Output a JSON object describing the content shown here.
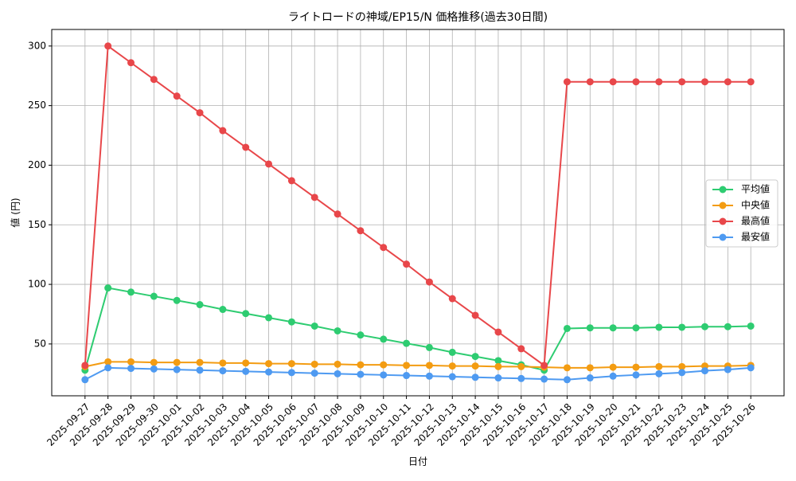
{
  "chart_data": {
    "type": "line",
    "title": "ライトロードの神域/EP15/N 価格推移(過去30日間)",
    "x_label": "日付",
    "y_label": "値 (円)",
    "categories": [
      "2025-09-27",
      "2025-09-28",
      "2025-09-29",
      "2025-09-30",
      "2025-10-01",
      "2025-10-02",
      "2025-10-03",
      "2025-10-04",
      "2025-10-05",
      "2025-10-06",
      "2025-10-07",
      "2025-10-08",
      "2025-10-09",
      "2025-10-10",
      "2025-10-11",
      "2025-10-12",
      "2025-10-13",
      "2025-10-14",
      "2025-10-15",
      "2025-10-16",
      "2025-10-17",
      "2025-10-18",
      "2025-10-19",
      "2025-10-20",
      "2025-10-21",
      "2025-10-22",
      "2025-10-23",
      "2025-10-24",
      "2025-10-25",
      "2025-10-26"
    ],
    "series": [
      {
        "name": "平均値",
        "color": "#2ecc71",
        "values": [
          28,
          97,
          93.5,
          90,
          86.5,
          83,
          79,
          75.5,
          72,
          68.5,
          65,
          61,
          57.5,
          54,
          50.5,
          47,
          43,
          39.5,
          36,
          32.5,
          28,
          63,
          63.5,
          63.5,
          63.5,
          64,
          64,
          64.5,
          64.5,
          65
        ]
      },
      {
        "name": "中央値",
        "color": "#f39c12",
        "values": [
          31,
          35,
          35,
          34.5,
          34.5,
          34.5,
          34,
          34,
          33.5,
          33.5,
          33,
          33,
          32.5,
          32.5,
          32,
          32,
          31.5,
          31.5,
          31,
          31,
          30.5,
          30,
          30,
          30.5,
          30.5,
          31,
          31,
          31.5,
          31.5,
          32
        ]
      },
      {
        "name": "最高値",
        "color": "#e8474a",
        "values": [
          32,
          300,
          286,
          272,
          258,
          244,
          229,
          215,
          201,
          187,
          173,
          159,
          145,
          131,
          117,
          102,
          88,
          74,
          60,
          46,
          32,
          270,
          270,
          270,
          270,
          270,
          270,
          270,
          270,
          270
        ]
      },
      {
        "name": "最安値",
        "color": "#4e9af1",
        "values": [
          20,
          30,
          29.5,
          29,
          28.5,
          28,
          27.5,
          27,
          26.5,
          26,
          25.5,
          25,
          24.5,
          24,
          23.5,
          23,
          22.5,
          22,
          21.5,
          21,
          20.5,
          20,
          21.5,
          23,
          24,
          25,
          26,
          27.5,
          28.5,
          30
        ]
      }
    ],
    "ylim": [
      6.5,
      313.9
    ],
    "yticks": [
      50,
      100,
      150,
      200,
      250,
      300
    ],
    "grid": true,
    "legend": "right"
  }
}
